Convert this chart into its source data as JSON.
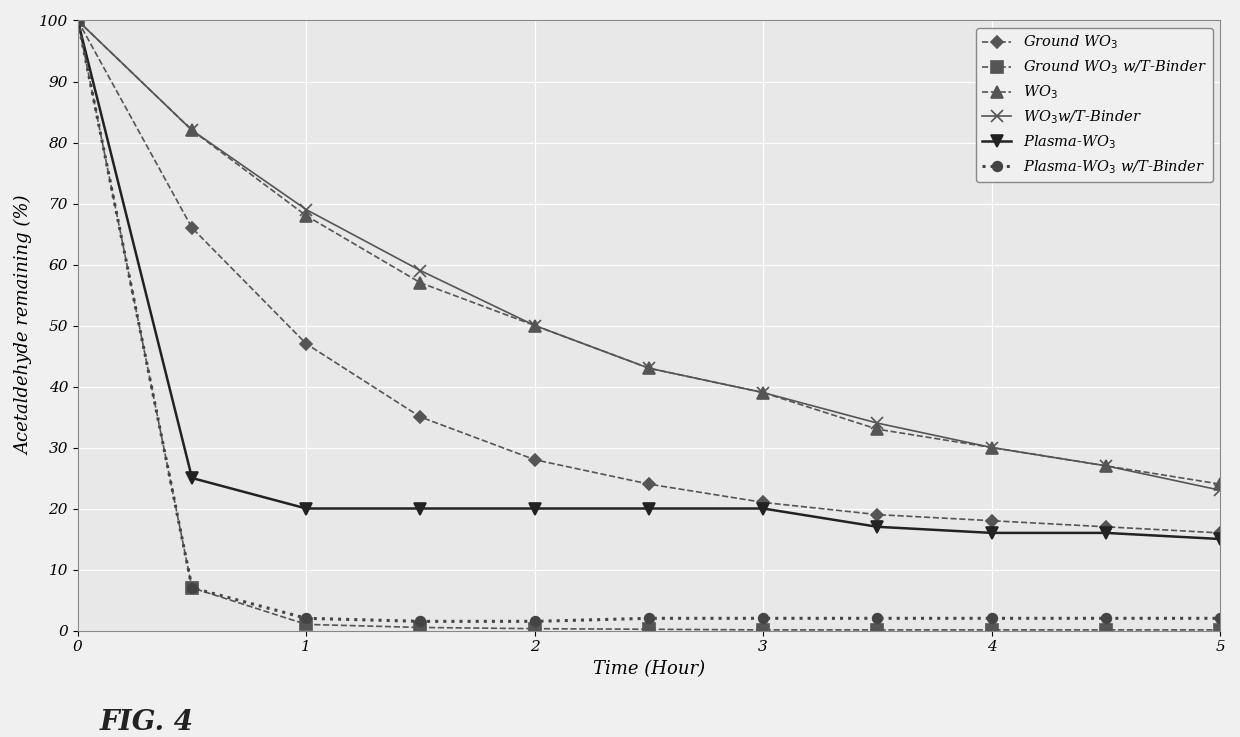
{
  "series": {
    "Ground WO3": {
      "x": [
        0,
        0.5,
        1,
        1.5,
        2,
        2.5,
        3,
        3.5,
        4,
        4.5,
        5
      ],
      "y": [
        100,
        66,
        47,
        35,
        28,
        24,
        21,
        19,
        18,
        17,
        16
      ],
      "linestyle": "--",
      "marker": "D",
      "markersize": 6,
      "linewidth": 1.2,
      "color": "#555555",
      "markerfacecolor": "#555555"
    },
    "Ground WO3 w/T-Binder": {
      "x": [
        0,
        0.5,
        1,
        1.5,
        2,
        2.5,
        3,
        3.5,
        4,
        4.5,
        5
      ],
      "y": [
        100,
        7,
        1,
        0.5,
        0.3,
        0.2,
        0.1,
        0.1,
        0.1,
        0.1,
        0.1
      ],
      "linestyle": "--",
      "marker": "s",
      "markersize": 8,
      "linewidth": 1.2,
      "color": "#555555",
      "markerfacecolor": "#555555"
    },
    "WO3": {
      "x": [
        0,
        0.5,
        1,
        1.5,
        2,
        2.5,
        3,
        3.5,
        4,
        4.5,
        5
      ],
      "y": [
        100,
        82,
        68,
        57,
        50,
        43,
        39,
        33,
        30,
        27,
        24
      ],
      "linestyle": "--",
      "marker": "^",
      "markersize": 8,
      "linewidth": 1.2,
      "color": "#555555",
      "markerfacecolor": "#555555"
    },
    "WO3 w/T-Binder": {
      "x": [
        0,
        0.5,
        1,
        1.5,
        2,
        2.5,
        3,
        3.5,
        4,
        4.5,
        5
      ],
      "y": [
        100,
        82,
        69,
        59,
        50,
        43,
        39,
        34,
        30,
        27,
        23
      ],
      "linestyle": "-",
      "marker": "x",
      "markersize": 9,
      "linewidth": 1.2,
      "color": "#555555",
      "markerfacecolor": "#555555"
    },
    "Plasma-WO3": {
      "x": [
        0,
        0.5,
        1,
        1.5,
        2,
        2.5,
        3,
        3.5,
        4,
        4.5,
        5
      ],
      "y": [
        100,
        25,
        20,
        20,
        20,
        20,
        20,
        17,
        16,
        16,
        15
      ],
      "linestyle": "-",
      "marker": "v",
      "markersize": 8,
      "linewidth": 1.8,
      "color": "#222222",
      "markerfacecolor": "#222222"
    },
    "Plasma-WO3 w/T-Binder": {
      "x": [
        0,
        0.5,
        1,
        1.5,
        2,
        2.5,
        3,
        3.5,
        4,
        4.5,
        5
      ],
      "y": [
        100,
        7,
        2,
        1.5,
        1.5,
        2,
        2,
        2,
        2,
        2,
        2
      ],
      "linestyle": ":",
      "marker": "o",
      "markersize": 7,
      "linewidth": 2.2,
      "color": "#444444",
      "markerfacecolor": "#444444"
    }
  },
  "xlabel": "Time (Hour)",
  "ylabel": "Acetaldehyde remaining (%)",
  "xlim": [
    0,
    5
  ],
  "ylim": [
    0,
    100
  ],
  "xticks": [
    0,
    1,
    2,
    3,
    4,
    5
  ],
  "yticks": [
    0,
    10,
    20,
    30,
    40,
    50,
    60,
    70,
    80,
    90,
    100
  ],
  "legend_labels": [
    "Ground WO$_3$",
    "Ground WO$_3$ w/T-Binder",
    "WO$_3$",
    "WO$_3$w/T-Binder",
    "Plasma-WO$_3$",
    "Plasma-WO$_3$ w/T-Binder"
  ],
  "fig_label": "FIG. 4",
  "background_color": "#f0f0f0",
  "plot_bg_color": "#e8e8e8",
  "grid_color": "#ffffff"
}
